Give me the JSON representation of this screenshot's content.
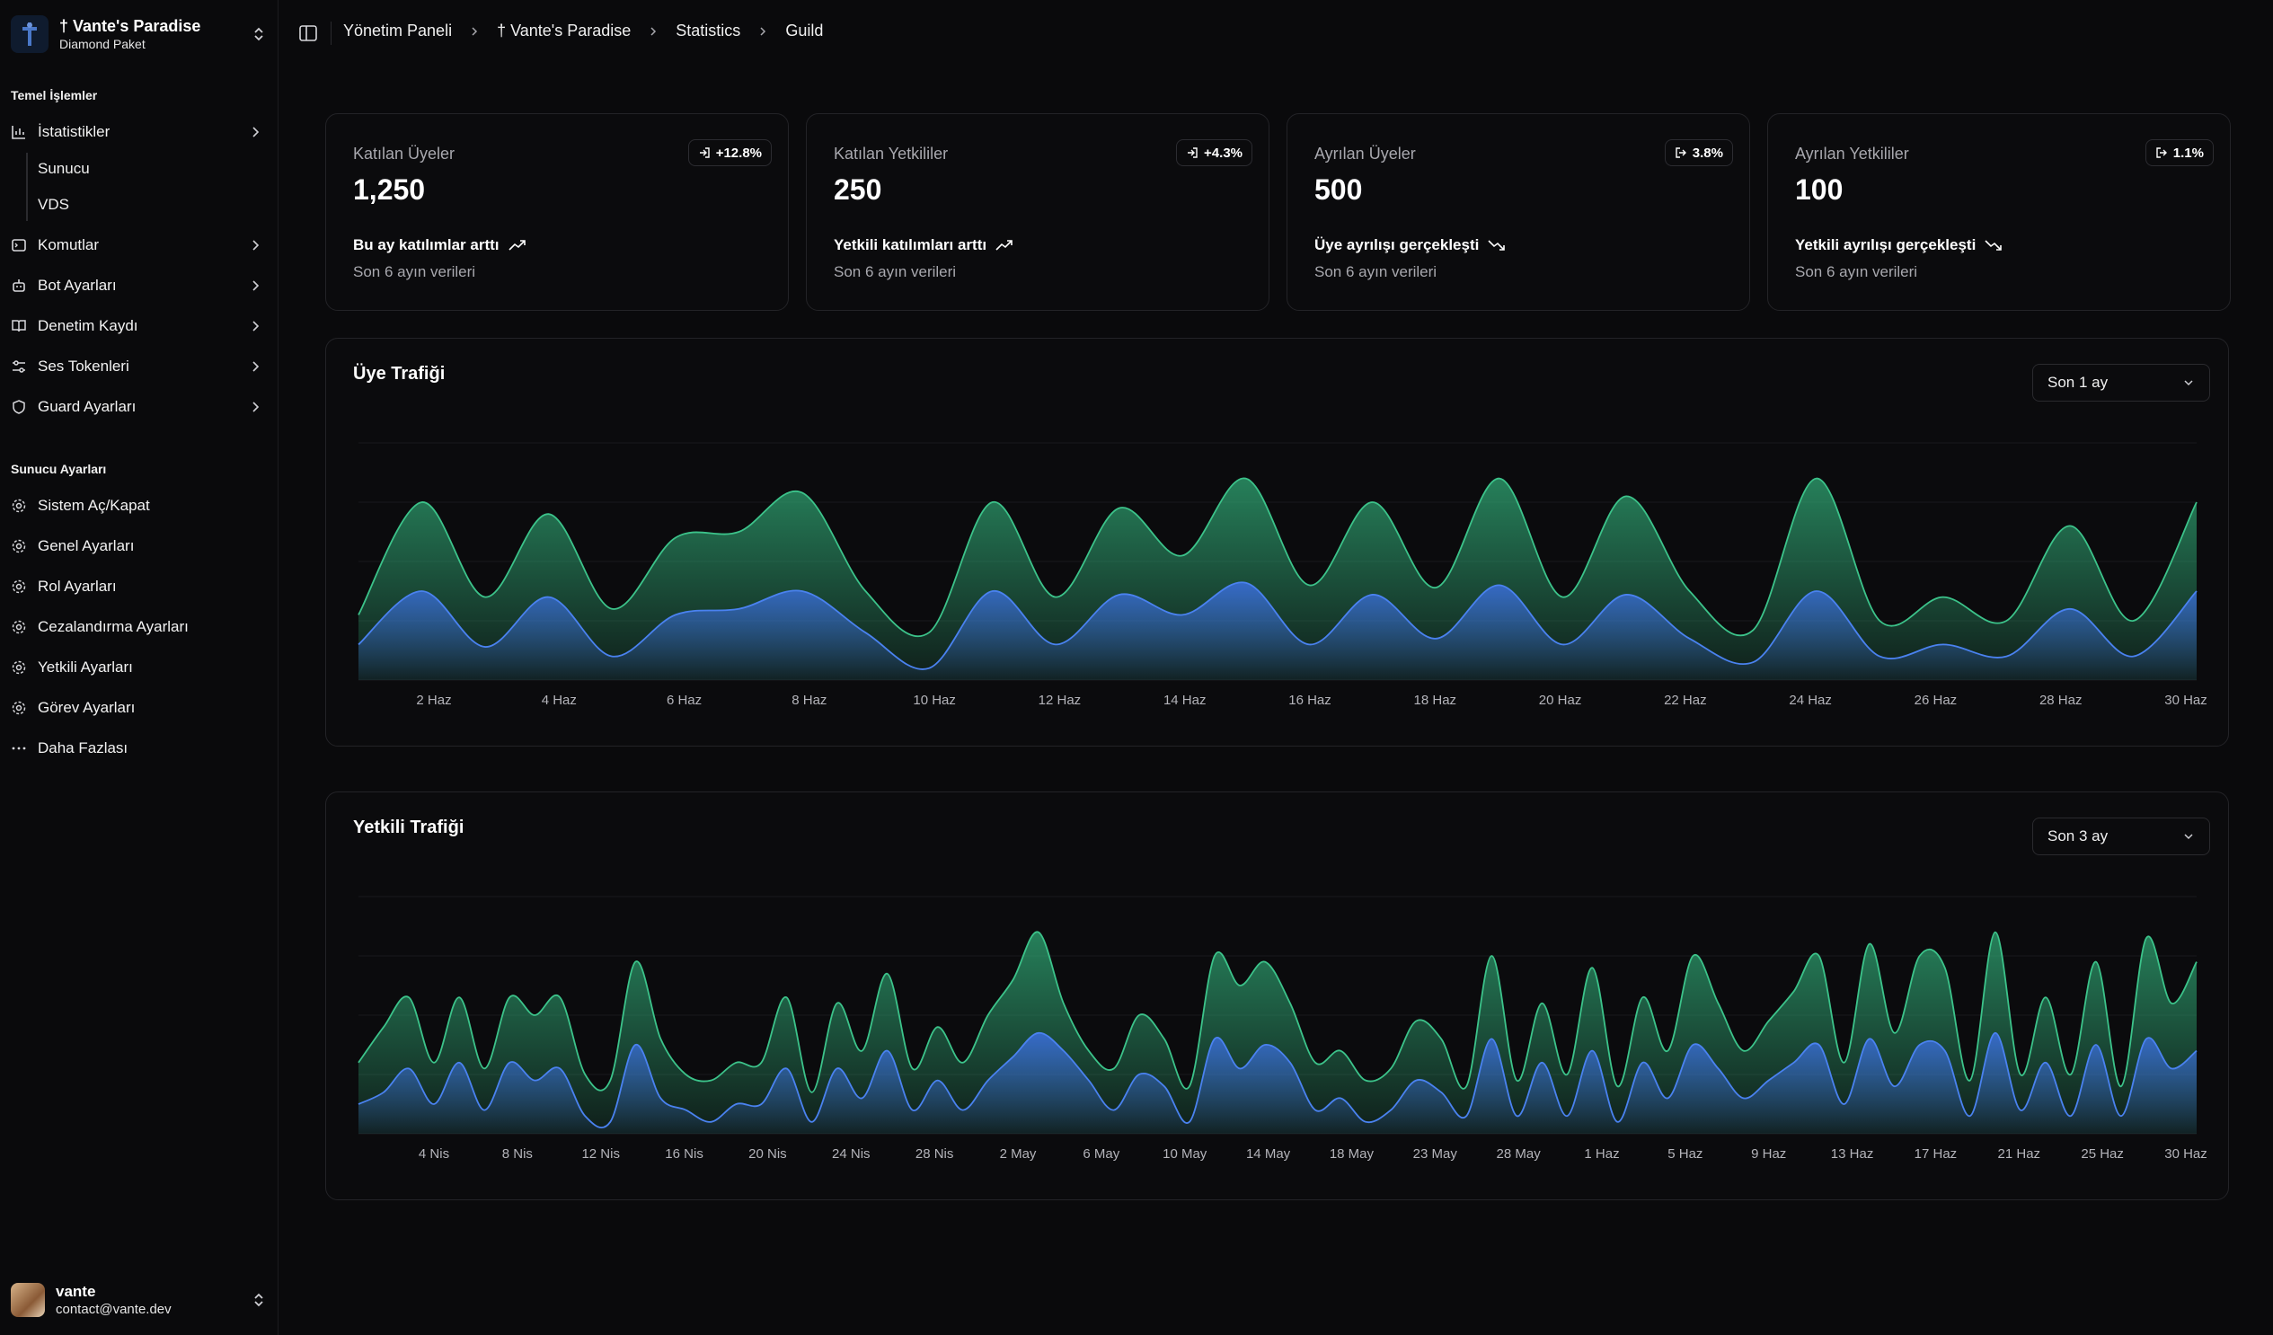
{
  "workspace": {
    "name": "† Vante's Paradise",
    "plan": "Diamond Paket"
  },
  "sidebar": {
    "group1_label": "Temel İşlemler",
    "items": [
      {
        "label": "İstatistikler",
        "icon": "bar-chart-icon"
      },
      {
        "label": "Komutlar",
        "icon": "terminal-icon"
      },
      {
        "label": "Bot Ayarları",
        "icon": "bot-icon"
      },
      {
        "label": "Denetim Kaydı",
        "icon": "book-icon"
      },
      {
        "label": "Ses Tokenleri",
        "icon": "sliders-icon"
      },
      {
        "label": "Guard Ayarları",
        "icon": "shield-icon"
      }
    ],
    "subitems": [
      "Sunucu",
      "VDS"
    ],
    "group2_label": "Sunucu Ayarları",
    "settings": [
      "Sistem Aç/Kapat",
      "Genel Ayarları",
      "Rol Ayarları",
      "Cezalandırma Ayarları",
      "Yetkili Ayarları",
      "Görev Ayarları"
    ],
    "more_label": "Daha Fazlası"
  },
  "user": {
    "name": "vante",
    "email": "contact@vante.dev"
  },
  "breadcrumb": [
    "Yönetim Paneli",
    "† Vante's Paradise",
    "Statistics",
    "Guild"
  ],
  "cards": [
    {
      "title": "Katılan Üyeler",
      "value": "1,250",
      "badge": "+12.8%",
      "trend": "Bu ay katılımlar arttı",
      "foot": "Son 6 ayın verileri",
      "direction": "up"
    },
    {
      "title": "Katılan Yetkililer",
      "value": "250",
      "badge": "+4.3%",
      "trend": "Yetkili katılımları arttı",
      "foot": "Son 6 ayın verileri",
      "direction": "up"
    },
    {
      "title": "Ayrılan Üyeler",
      "value": "500",
      "badge": "3.8%",
      "trend": "Üye ayrılışı gerçekleşti",
      "foot": "Son 6 ayın verileri",
      "direction": "down"
    },
    {
      "title": "Ayrılan Yetkililer",
      "value": "100",
      "badge": "1.1%",
      "trend": "Yetkili ayrılışı gerçekleşti",
      "foot": "Son 6 ayın verileri",
      "direction": "down"
    }
  ],
  "charts": {
    "member": {
      "title": "Üye Trafiği",
      "range": "Son 1 ay"
    },
    "staff": {
      "title": "Yetkili Trafiği",
      "range": "Son 3 ay"
    }
  },
  "colors": {
    "green": "#2fa774",
    "blue": "#3b6fe0",
    "bg": "#0a0a0c"
  },
  "chart_data": [
    {
      "type": "area",
      "title": "Üye Trafiği",
      "x": [
        "1 Haz",
        "2 Haz",
        "3 Haz",
        "4 Haz",
        "5 Haz",
        "6 Haz",
        "7 Haz",
        "8 Haz",
        "9 Haz",
        "10 Haz",
        "11 Haz",
        "12 Haz",
        "13 Haz",
        "14 Haz",
        "15 Haz",
        "16 Haz",
        "17 Haz",
        "18 Haz",
        "19 Haz",
        "20 Haz",
        "21 Haz",
        "22 Haz",
        "23 Haz",
        "24 Haz",
        "25 Haz",
        "26 Haz",
        "27 Haz",
        "28 Haz",
        "29 Haz",
        "30 Haz"
      ],
      "tick_labels": [
        "2 Haz",
        "4 Haz",
        "6 Haz",
        "8 Haz",
        "10 Haz",
        "12 Haz",
        "14 Haz",
        "16 Haz",
        "18 Haz",
        "20 Haz",
        "22 Haz",
        "24 Haz",
        "26 Haz",
        "28 Haz",
        "30 Haz"
      ],
      "series": [
        {
          "color": "#2fa774",
          "values": [
            55,
            150,
            70,
            140,
            60,
            120,
            125,
            158,
            75,
            40,
            150,
            70,
            145,
            105,
            170,
            80,
            150,
            78,
            170,
            70,
            155,
            75,
            42,
            170,
            50,
            70,
            50,
            130,
            50,
            150
          ]
        },
        {
          "color": "#3b6fe0",
          "values": [
            30,
            75,
            28,
            70,
            20,
            55,
            60,
            75,
            40,
            10,
            75,
            30,
            72,
            55,
            82,
            30,
            72,
            35,
            80,
            30,
            72,
            35,
            15,
            75,
            20,
            30,
            20,
            60,
            20,
            75
          ]
        }
      ],
      "ylim": [
        0,
        200
      ]
    },
    {
      "type": "area",
      "title": "Yetkili Trafiği",
      "tick_labels": [
        "4 Nis",
        "8 Nis",
        "12 Nis",
        "16 Nis",
        "20 Nis",
        "24 Nis",
        "28 Nis",
        "2 May",
        "6 May",
        "10 May",
        "14 May",
        "18 May",
        "23 May",
        "28 May",
        "1 Haz",
        "5 Haz",
        "9 Haz",
        "13 Haz",
        "17 Haz",
        "21 Haz",
        "25 Haz",
        "30 Haz"
      ],
      "series": [
        {
          "color": "#2fa774",
          "values": [
            60,
            90,
            115,
            60,
            115,
            55,
            115,
            100,
            115,
            50,
            45,
            145,
            80,
            50,
            45,
            60,
            60,
            115,
            35,
            110,
            70,
            135,
            55,
            90,
            60,
            100,
            130,
            170,
            110,
            70,
            55,
            100,
            80,
            40,
            150,
            125,
            145,
            110,
            60,
            70,
            45,
            55,
            95,
            80,
            40,
            150,
            45,
            110,
            50,
            140,
            40,
            115,
            70,
            150,
            110,
            70,
            95,
            120,
            150,
            60,
            160,
            85,
            150,
            140,
            45,
            170,
            50,
            115,
            50,
            145,
            40,
            165,
            110,
            145
          ]
        },
        {
          "color": "#3b6fe0",
          "values": [
            25,
            35,
            55,
            25,
            60,
            20,
            60,
            45,
            55,
            15,
            10,
            75,
            30,
            20,
            10,
            25,
            25,
            55,
            10,
            55,
            30,
            70,
            20,
            45,
            20,
            45,
            65,
            85,
            70,
            45,
            20,
            50,
            40,
            10,
            80,
            55,
            75,
            60,
            20,
            30,
            10,
            20,
            45,
            35,
            15,
            80,
            15,
            60,
            15,
            70,
            10,
            60,
            30,
            75,
            55,
            30,
            45,
            60,
            75,
            25,
            80,
            40,
            75,
            70,
            15,
            85,
            20,
            60,
            15,
            75,
            15,
            80,
            55,
            70
          ]
        }
      ],
      "ylim": [
        0,
        200
      ]
    }
  ]
}
